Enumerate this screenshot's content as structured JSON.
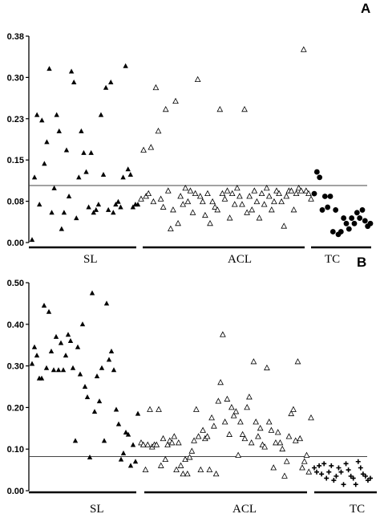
{
  "chart_data": [
    {
      "type": "scatter",
      "panel": "A",
      "ylim": [
        0,
        0.38
      ],
      "yticks": [
        "0.00",
        "0.08",
        "0.15",
        "0.23",
        "0.30",
        "0.38"
      ],
      "threshold": 0.105,
      "groups": [
        "SL",
        "ACL",
        "TC"
      ],
      "series": [
        {
          "group": "SL",
          "marker": "filled-triangle",
          "values": [
            0.005,
            0.12,
            0.235,
            0.07,
            0.225,
            0.145,
            0.185,
            0.32,
            0.055,
            0.1,
            0.235,
            0.205,
            0.025,
            0.055,
            0.17,
            0.085,
            0.315,
            0.295,
            0.045,
            0.12,
            0.205,
            0.165,
            0.13,
            0.065,
            0.165,
            0.055,
            0.06,
            0.07,
            0.235,
            0.125,
            0.285,
            0.06,
            0.295,
            0.055,
            0.07,
            0.075,
            0.065,
            0.12,
            0.325,
            0.135,
            0.125,
            0.065,
            0.07,
            0.07
          ]
        },
        {
          "group": "ACL",
          "marker": "open-triangle",
          "values": [
            0.08,
            0.17,
            0.085,
            0.09,
            0.175,
            0.075,
            0.285,
            0.205,
            0.08,
            0.065,
            0.245,
            0.095,
            0.025,
            0.06,
            0.26,
            0.035,
            0.085,
            0.07,
            0.1,
            0.075,
            0.095,
            0.055,
            0.09,
            0.3,
            0.085,
            0.075,
            0.05,
            0.09,
            0.035,
            0.075,
            0.065,
            0.06,
            0.245,
            0.09,
            0.08,
            0.095,
            0.045,
            0.09,
            0.07,
            0.1,
            0.085,
            0.07,
            0.245,
            0.055,
            0.085,
            0.06,
            0.095,
            0.075,
            0.045,
            0.09,
            0.07,
            0.1,
            0.085,
            0.06,
            0.075,
            0.095,
            0.09,
            0.075,
            0.03,
            0.085,
            0.095,
            0.095,
            0.06,
            0.09,
            0.1,
            0.095,
            0.355,
            0.095,
            0.09,
            0.08
          ]
        },
        {
          "group": "TC",
          "marker": "filled-circle",
          "values": [
            0.09,
            0.13,
            0.12,
            0.06,
            0.085,
            0.065,
            0.085,
            0.02,
            0.06,
            0.015,
            0.02,
            0.045,
            0.035,
            0.025,
            0.045,
            0.035,
            0.055,
            0.045,
            0.06,
            0.04,
            0.03,
            0.035
          ]
        }
      ]
    },
    {
      "type": "scatter",
      "panel": "B",
      "ylim": [
        0,
        0.5
      ],
      "yticks": [
        "0.00",
        "0.10",
        "0.20",
        "0.30",
        "0.40",
        "0.50"
      ],
      "threshold": 0.082,
      "groups": [
        "SL",
        "ACL",
        "TC"
      ],
      "series": [
        {
          "group": "SL",
          "marker": "filled-triangle",
          "values": [
            0.305,
            0.345,
            0.325,
            0.27,
            0.27,
            0.445,
            0.295,
            0.43,
            0.335,
            0.29,
            0.37,
            0.29,
            0.355,
            0.29,
            0.325,
            0.375,
            0.36,
            0.295,
            0.12,
            0.345,
            0.28,
            0.4,
            0.25,
            0.225,
            0.08,
            0.475,
            0.19,
            0.275,
            0.215,
            0.295,
            0.12,
            0.45,
            0.315,
            0.335,
            0.29,
            0.195,
            0.16,
            0.075,
            0.09,
            0.14,
            0.135,
            0.06,
            0.11,
            0.07,
            0.185
          ]
        },
        {
          "group": "ACL",
          "marker": "open-triangle",
          "values": [
            0.115,
            0.11,
            0.05,
            0.11,
            0.195,
            0.105,
            0.11,
            0.11,
            0.195,
            0.06,
            0.125,
            0.075,
            0.11,
            0.12,
            0.115,
            0.13,
            0.05,
            0.115,
            0.06,
            0.04,
            0.075,
            0.04,
            0.08,
            0.095,
            0.12,
            0.195,
            0.13,
            0.05,
            0.145,
            0.125,
            0.13,
            0.05,
            0.175,
            0.155,
            0.04,
            0.215,
            0.26,
            0.375,
            0.165,
            0.22,
            0.135,
            0.2,
            0.18,
            0.19,
            0.085,
            0.165,
            0.135,
            0.125,
            0.2,
            0.225,
            0.115,
            0.31,
            0.165,
            0.13,
            0.15,
            0.11,
            0.105,
            0.295,
            0.165,
            0.145,
            0.055,
            0.115,
            0.14,
            0.115,
            0.1,
            0.035,
            0.07,
            0.13,
            0.185,
            0.195,
            0.12,
            0.31,
            0.125,
            0.055,
            0.07,
            0.085,
            0.045,
            0.175
          ]
        },
        {
          "group": "TC",
          "marker": "plus",
          "values": [
            0.055,
            0.045,
            0.06,
            0.04,
            0.065,
            0.03,
            0.045,
            0.06,
            0.025,
            0.035,
            0.055,
            0.045,
            0.015,
            0.065,
            0.05,
            0.035,
            0.03,
            0.015,
            0.07,
            0.055,
            0.04,
            0.035,
            0.025,
            0.03
          ]
        }
      ]
    }
  ]
}
